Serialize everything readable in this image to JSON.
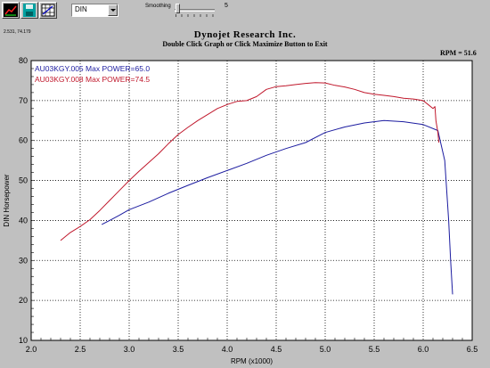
{
  "toolbar": {
    "buttons": [
      {
        "name": "graph-icon"
      },
      {
        "name": "save-icon"
      },
      {
        "name": "grid-icon"
      }
    ],
    "dropdown_value": "DIN",
    "smoothing_label": "Smoothing",
    "smoothing_value": "5"
  },
  "cursor_coords": "2.531, 74.179",
  "title": "Dynojet  Research  Inc.",
  "subtitle": "Double Click Graph or Click Maximize Button to Exit",
  "rpm_readout": "RPM = 51.6",
  "colors": {
    "background": "#c0c0c0",
    "plot_background": "#ffffff",
    "grid": "#000000",
    "series1": "#1c1ca0",
    "series2": "#c0182c"
  },
  "chart_data": {
    "type": "line",
    "xlabel": "RPM (x1000)",
    "ylabel": "DIN Horsepower",
    "xlim": [
      2.0,
      6.5
    ],
    "ylim": [
      10,
      80
    ],
    "x_ticks": [
      "2.0",
      "2.5",
      "3.0",
      "3.5",
      "4.0",
      "4.5",
      "5.0",
      "5.5",
      "6.0",
      "6.5"
    ],
    "y_ticks": [
      "10",
      "20",
      "30",
      "40",
      "50",
      "60",
      "70",
      "80"
    ],
    "grid": true,
    "legend_position": "top-left",
    "series": [
      {
        "name": "AU03KGY.005  Max POWER=65.0",
        "color": "#1c1ca0",
        "points": [
          [
            2.72,
            39.0
          ],
          [
            2.8,
            40.0
          ],
          [
            2.9,
            41.3
          ],
          [
            3.0,
            42.7
          ],
          [
            3.2,
            44.6
          ],
          [
            3.4,
            46.8
          ],
          [
            3.6,
            48.8
          ],
          [
            3.8,
            50.7
          ],
          [
            4.0,
            52.5
          ],
          [
            4.2,
            54.3
          ],
          [
            4.4,
            56.3
          ],
          [
            4.6,
            58.0
          ],
          [
            4.8,
            59.5
          ],
          [
            5.0,
            62.0
          ],
          [
            5.2,
            63.4
          ],
          [
            5.4,
            64.4
          ],
          [
            5.6,
            65.0
          ],
          [
            5.8,
            64.7
          ],
          [
            6.0,
            64.0
          ],
          [
            6.15,
            62.5
          ],
          [
            6.22,
            55.0
          ],
          [
            6.26,
            40.0
          ],
          [
            6.28,
            30.0
          ],
          [
            6.3,
            21.5
          ]
        ]
      },
      {
        "name": "AU03KGY.008  Max POWER=74.5",
        "color": "#c0182c",
        "points": [
          [
            2.3,
            35.0
          ],
          [
            2.4,
            37.0
          ],
          [
            2.5,
            38.5
          ],
          [
            2.6,
            40.2
          ],
          [
            2.7,
            42.5
          ],
          [
            2.8,
            45.0
          ],
          [
            2.9,
            47.5
          ],
          [
            3.0,
            50.0
          ],
          [
            3.1,
            52.3
          ],
          [
            3.2,
            54.5
          ],
          [
            3.3,
            56.7
          ],
          [
            3.4,
            59.2
          ],
          [
            3.5,
            61.5
          ],
          [
            3.6,
            63.3
          ],
          [
            3.7,
            65.0
          ],
          [
            3.8,
            66.5
          ],
          [
            3.9,
            68.0
          ],
          [
            4.0,
            69.0
          ],
          [
            4.1,
            69.8
          ],
          [
            4.2,
            70.0
          ],
          [
            4.3,
            71.0
          ],
          [
            4.4,
            72.8
          ],
          [
            4.5,
            73.5
          ],
          [
            4.6,
            73.7
          ],
          [
            4.7,
            74.0
          ],
          [
            4.8,
            74.3
          ],
          [
            4.9,
            74.5
          ],
          [
            5.0,
            74.4
          ],
          [
            5.1,
            73.8
          ],
          [
            5.2,
            73.4
          ],
          [
            5.3,
            72.8
          ],
          [
            5.4,
            72.0
          ],
          [
            5.5,
            71.6
          ],
          [
            5.6,
            71.3
          ],
          [
            5.7,
            71.0
          ],
          [
            5.8,
            70.6
          ],
          [
            5.9,
            70.4
          ],
          [
            6.0,
            70.0
          ],
          [
            6.05,
            69.0
          ],
          [
            6.1,
            68.0
          ],
          [
            6.12,
            68.5
          ],
          [
            6.13,
            65.0
          ],
          [
            6.15,
            62.0
          ],
          [
            6.16,
            59.5
          ]
        ]
      }
    ]
  }
}
